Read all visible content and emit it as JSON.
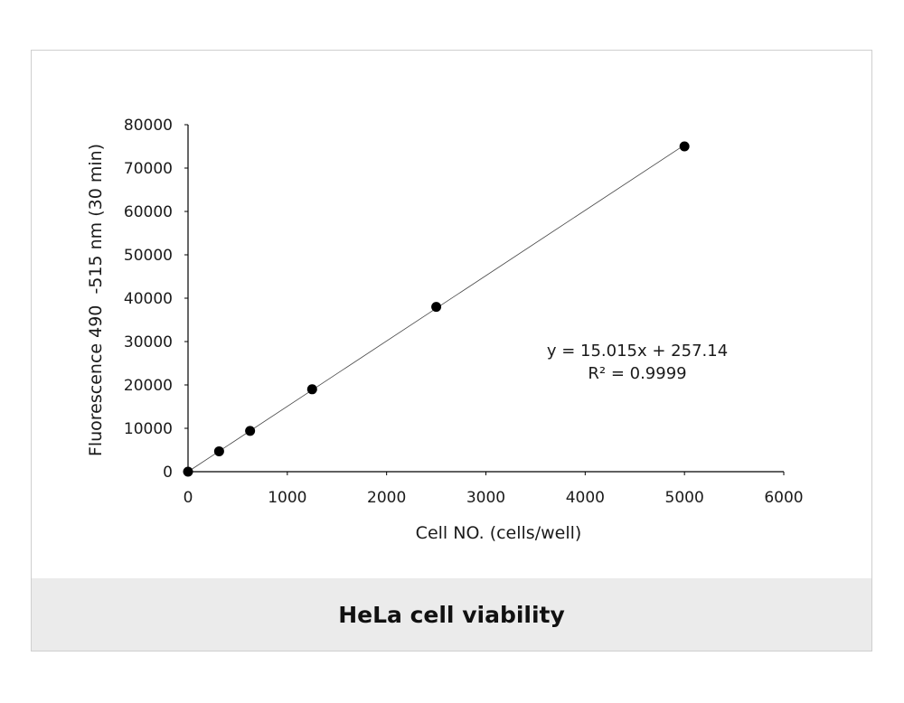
{
  "chart_data": {
    "type": "scatter",
    "title": "",
    "xlabel": "Cell NO. (cells/well)",
    "ylabel": "Fluorescence 490  -515 nm (30 min)",
    "xlim": [
      0,
      6000
    ],
    "ylim": [
      0,
      80000
    ],
    "xticks": [
      0,
      1000,
      2000,
      3000,
      4000,
      5000,
      6000
    ],
    "yticks": [
      0,
      10000,
      20000,
      30000,
      40000,
      50000,
      60000,
      70000,
      80000
    ],
    "series": [
      {
        "x": [
          0,
          313,
          625,
          1250,
          2500,
          5000
        ],
        "y": [
          0,
          4700,
          9400,
          19000,
          38000,
          75000
        ]
      }
    ],
    "trendline": {
      "slope": 15.015,
      "intercept": 257.14
    },
    "equation_label": "y = 15.015x + 257.14",
    "r2_label": "R² = 0.9999",
    "grid": false,
    "legend": "none"
  },
  "caption": "HeLa cell viability"
}
